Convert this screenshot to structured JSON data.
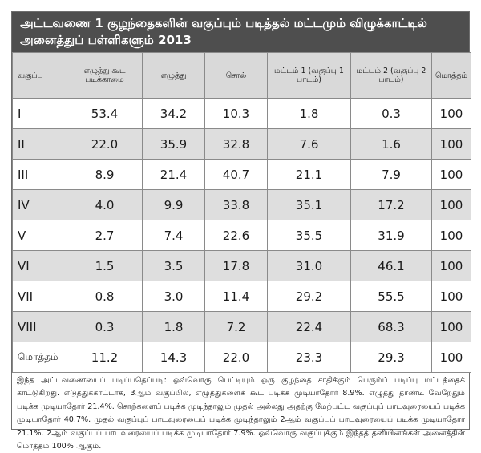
{
  "title": "அட்டவணை 1 குழந்தைகளின் வகுப்பும் படித்தல் மட்டமும் விழுக்காட்டில் அனைத்துப் பள்ளிகளும் 2013",
  "table": {
    "headers": [
      "வகுப்பு",
      "எழுத்து கூட படிக்காமை",
      "எழுத்து",
      "சொல்",
      "மட்டம் 1 (வகுப்பு 1 பாடம்)",
      "மட்டம் 2 (வகுப்பு 2 பாடம்)",
      "மொத்தம்"
    ],
    "rows": [
      [
        "I",
        "53.4",
        "34.2",
        "10.3",
        "1.8",
        "0.3",
        "100"
      ],
      [
        "II",
        "22.0",
        "35.9",
        "32.8",
        "7.6",
        "1.6",
        "100"
      ],
      [
        "III",
        "8.9",
        "21.4",
        "40.7",
        "21.1",
        "7.9",
        "100"
      ],
      [
        "IV",
        "4.0",
        "9.9",
        "33.8",
        "35.1",
        "17.2",
        "100"
      ],
      [
        "V",
        "2.7",
        "7.4",
        "22.6",
        "35.5",
        "31.9",
        "100"
      ],
      [
        "VI",
        "1.5",
        "3.5",
        "17.8",
        "31.0",
        "46.1",
        "100"
      ],
      [
        "VII",
        "0.8",
        "3.0",
        "11.4",
        "29.2",
        "55.5",
        "100"
      ],
      [
        "VIII",
        "0.3",
        "1.8",
        "7.2",
        "22.4",
        "68.3",
        "100"
      ],
      [
        "மொத்தம்",
        "11.2",
        "14.3",
        "22.0",
        "23.3",
        "29.3",
        "100"
      ]
    ]
  },
  "note": "இந்த அட்டவணையைப் படிப்பதெப்படி: ஒவ்வொரு பெட்டியும் ஒரு குழந்தை சாதிக்கும் பெரும்ப் படிப்பு மட்டத்தைக் காட்டுகிறது. எடுத்துக்காட்டாக, 3ஆம் வகுப்பில், எழுத்துகளைக் கூட படிக்க முடியாதோர் 8.9%. எழுத்து தாண்டி வேறேதும் படிக்க முடியாதோர் 21.4%. சொற்களைப் படிக்க முடிந்தாலும் முதல் அல்லது அதற்கு மேற்பட்ட வகுப்புப் பாடவுரையைப் படிக்க முடியாதோர் 40.7%. முதல் வகுப்புப் பாடவுரையைப் படிக்க முடிந்தாலும் 2ஆம் வகுப்புப் பாடவுரையைப் படிக்க முடியாதோர் 21.1%. 2ஆம் வகுப்புப் பாடவுரையைப் படிக்க முடியாதோர் 7.9%. ஒவ்வொரு வகுப்புக்கும் இந்தத் தனியினங்கள் அனைத்தின் மொத்தம் 100% ஆகும்."
}
